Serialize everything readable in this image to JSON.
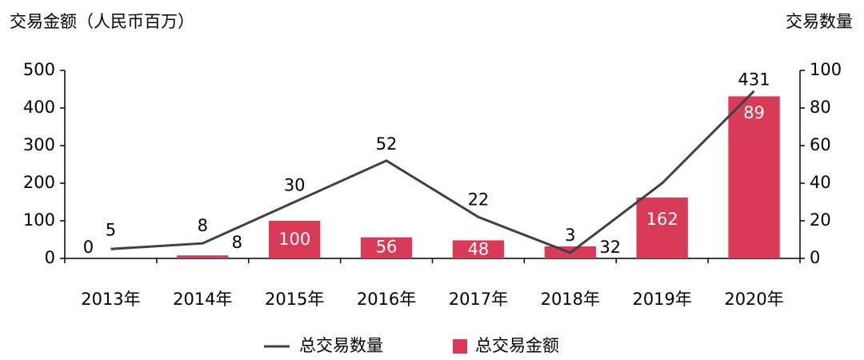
{
  "chart_data": {
    "type": "bar-line",
    "y_label": "交易金额（人民币百万）",
    "y2_label": "交易数量",
    "categories": [
      "2013年",
      "2014年",
      "2015年",
      "2016年",
      "2017年",
      "2018年",
      "2019年",
      "2020年"
    ],
    "series": [
      {
        "name": "总交易数量",
        "type": "line",
        "axis": "y2",
        "color": "#404040",
        "values": [
          5,
          8,
          30,
          52,
          22,
          3,
          40,
          89
        ],
        "value_labels": [
          "5",
          "8",
          "30",
          "52",
          "22",
          "3",
          null,
          "89"
        ]
      },
      {
        "name": "总交易金额",
        "type": "bar",
        "axis": "y",
        "color": "#d93a58",
        "values": [
          0,
          8,
          100,
          56,
          48,
          32,
          162,
          431
        ]
      }
    ],
    "ylim": [
      0,
      500
    ],
    "yticks": [
      0,
      100,
      200,
      300,
      400,
      500
    ],
    "y2lim": [
      0,
      100
    ],
    "y2ticks": [
      0,
      20,
      40,
      60,
      80,
      100
    ],
    "legend": "bottom"
  }
}
